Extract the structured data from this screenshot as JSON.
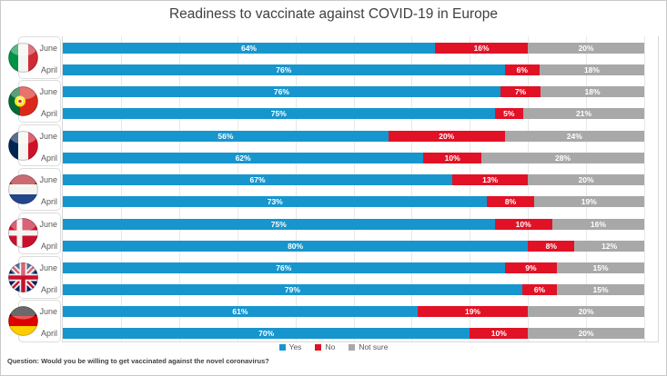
{
  "title": "Readiness to vaccinate against COVID-19 in Europe",
  "footer": "Question: Would you be willing to get vaccinated against the novel coronavirus?",
  "legend": [
    {
      "label": "Yes",
      "color": "#1796CE"
    },
    {
      "label": "No",
      "color": "#E11226"
    },
    {
      "label": "Not sure",
      "color": "#A8A8A8"
    }
  ],
  "colors": {
    "yes": "#1796CE",
    "no": "#E11226",
    "not_sure": "#A8A8A8",
    "gridline": "#E8E8E8",
    "axis": "#D9D9D9",
    "title_text": "#404040",
    "label_text": "#595959"
  },
  "chart_data": {
    "type": "bar",
    "stacked": true,
    "orientation": "horizontal",
    "title": "Readiness to vaccinate against COVID-19 in Europe",
    "series_names": [
      "Yes",
      "No",
      "Not sure"
    ],
    "row_labels": [
      "June",
      "April"
    ],
    "xlim": [
      0,
      100
    ],
    "gridlines": true,
    "legend_position": "bottom",
    "countries": [
      {
        "name": "Italy",
        "flag": "it",
        "june": {
          "yes": 64,
          "no": 16,
          "not_sure": 20
        },
        "april": {
          "yes": 76,
          "no": 6,
          "not_sure": 18
        }
      },
      {
        "name": "Portugal",
        "flag": "pt",
        "june": {
          "yes": 76,
          "no": 7,
          "not_sure": 18
        },
        "april": {
          "yes": 75,
          "no": 5,
          "not_sure": 21
        }
      },
      {
        "name": "France",
        "flag": "fr",
        "june": {
          "yes": 56,
          "no": 20,
          "not_sure": 24
        },
        "april": {
          "yes": 62,
          "no": 10,
          "not_sure": 28
        }
      },
      {
        "name": "Netherlands",
        "flag": "nl",
        "june": {
          "yes": 67,
          "no": 13,
          "not_sure": 20
        },
        "april": {
          "yes": 73,
          "no": 8,
          "not_sure": 19
        }
      },
      {
        "name": "Denmark",
        "flag": "dk",
        "june": {
          "yes": 75,
          "no": 10,
          "not_sure": 16
        },
        "april": {
          "yes": 80,
          "no": 8,
          "not_sure": 12
        }
      },
      {
        "name": "United Kingdom",
        "flag": "gb",
        "june": {
          "yes": 76,
          "no": 9,
          "not_sure": 15
        },
        "april": {
          "yes": 79,
          "no": 6,
          "not_sure": 15
        }
      },
      {
        "name": "Germany",
        "flag": "de",
        "june": {
          "yes": 61,
          "no": 19,
          "not_sure": 20
        },
        "april": {
          "yes": 70,
          "no": 10,
          "not_sure": 20
        }
      }
    ]
  }
}
